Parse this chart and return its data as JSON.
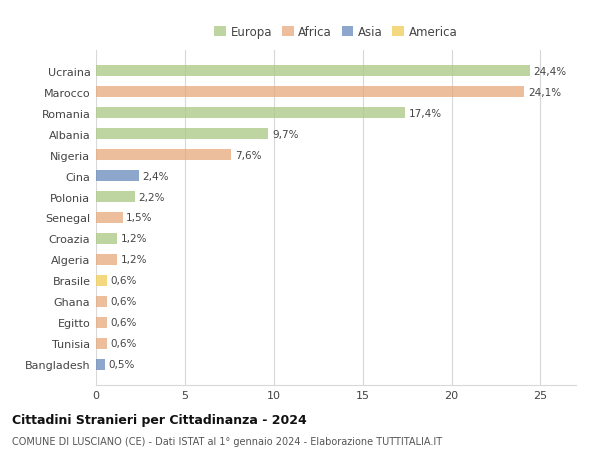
{
  "categories": [
    "Ucraina",
    "Marocco",
    "Romania",
    "Albania",
    "Nigeria",
    "Cina",
    "Polonia",
    "Senegal",
    "Croazia",
    "Algeria",
    "Brasile",
    "Ghana",
    "Egitto",
    "Tunisia",
    "Bangladesh"
  ],
  "values": [
    24.4,
    24.1,
    17.4,
    9.7,
    7.6,
    2.4,
    2.2,
    1.5,
    1.2,
    1.2,
    0.6,
    0.6,
    0.6,
    0.6,
    0.5
  ],
  "labels": [
    "24,4%",
    "24,1%",
    "17,4%",
    "9,7%",
    "7,6%",
    "2,4%",
    "2,2%",
    "1,5%",
    "1,2%",
    "1,2%",
    "0,6%",
    "0,6%",
    "0,6%",
    "0,6%",
    "0,5%"
  ],
  "continents": [
    "Europa",
    "Africa",
    "Europa",
    "Europa",
    "Africa",
    "Asia",
    "Europa",
    "Africa",
    "Europa",
    "Africa",
    "America",
    "Africa",
    "Africa",
    "Africa",
    "Asia"
  ],
  "continent_colors": {
    "Europa": "#a8c882",
    "Africa": "#e8a87a",
    "Asia": "#6688bb",
    "America": "#f0cc55"
  },
  "legend_order": [
    "Europa",
    "Africa",
    "Asia",
    "America"
  ],
  "xlim": [
    0,
    27
  ],
  "xticks": [
    0,
    5,
    10,
    15,
    20,
    25
  ],
  "title": "Cittadini Stranieri per Cittadinanza - 2024",
  "subtitle": "COMUNE DI LUSCIANO (CE) - Dati ISTAT al 1° gennaio 2024 - Elaborazione TUTTITALIA.IT",
  "background_color": "#ffffff",
  "grid_color": "#d8d8d8",
  "bar_height": 0.55,
  "bar_alpha": 0.75
}
